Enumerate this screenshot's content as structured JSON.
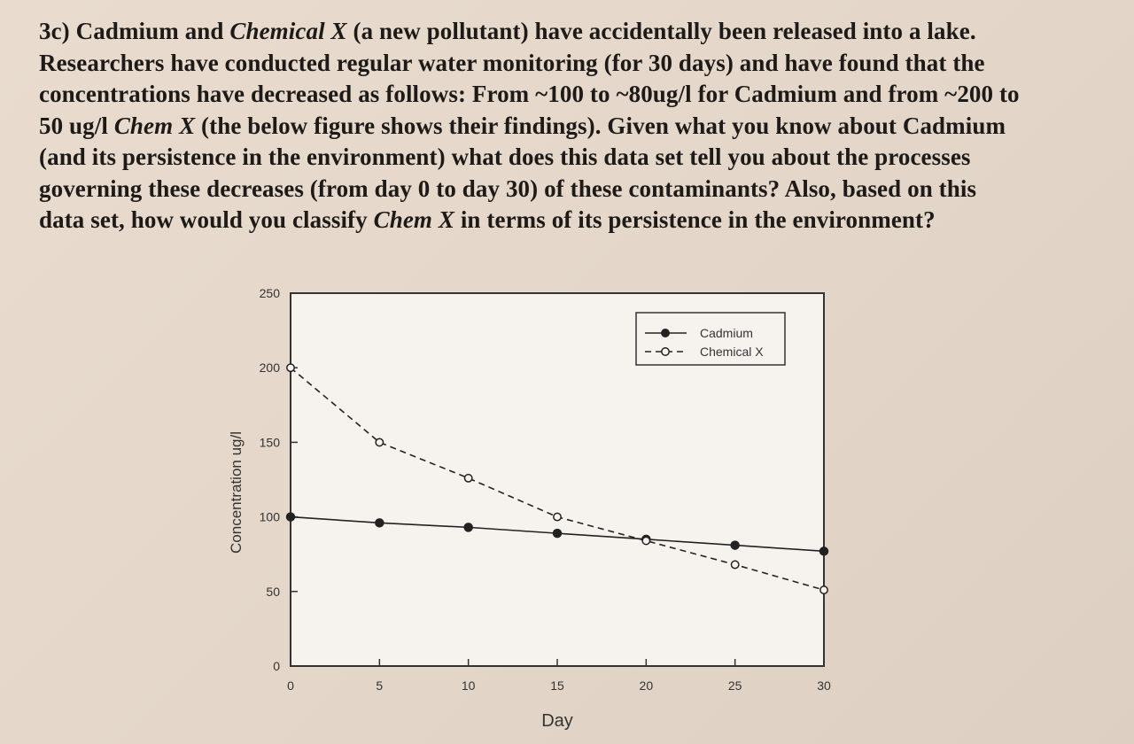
{
  "question": {
    "line1": {
      "a": "3c) Cadmium and ",
      "b": "Chemical X",
      "c": " (a new pollutant) have accidentally been released into a lake."
    },
    "line2": "Researchers have conducted regular water monitoring (for 30 days) and have found that the",
    "line3": "concentrations have decreased as follows: From ~100 to ~80ug/l for Cadmium and from ~200 to",
    "line4": {
      "a": "50 ug/l ",
      "b": "Chem X",
      "c": " (the below figure shows their findings).  Given what you know about Cadmium"
    },
    "line5": "(and its persistence in the environment) what does this data set tell you about the processes",
    "line6": "governing these decreases (from day 0 to day 30) of these contaminants?  Also, based on this",
    "line7": {
      "a": "data set, how would you classify ",
      "b": "Chem X",
      "c": " in terms of its persistence in the environment?"
    }
  },
  "chart_data": {
    "type": "line",
    "xlabel": "Day",
    "ylabel": "Concentration ug/l",
    "xlim": [
      0,
      30
    ],
    "ylim": [
      0,
      250
    ],
    "xticks": [
      "0",
      "5",
      "10",
      "15",
      "20",
      "25",
      "30"
    ],
    "yticks": [
      "0",
      "50",
      "100",
      "150",
      "200",
      "250"
    ],
    "x": [
      0,
      5,
      10,
      15,
      20,
      25,
      30
    ],
    "series": [
      {
        "name": "Cadmium",
        "marker": "filled-circle",
        "line": "solid",
        "values": [
          100,
          96,
          93,
          89,
          85,
          81,
          77
        ]
      },
      {
        "name": "Chemical X",
        "marker": "open-circle",
        "line": "dashed",
        "values": [
          200,
          150,
          126,
          100,
          84,
          68,
          51
        ]
      }
    ],
    "legend": "top-right",
    "grid": false
  }
}
